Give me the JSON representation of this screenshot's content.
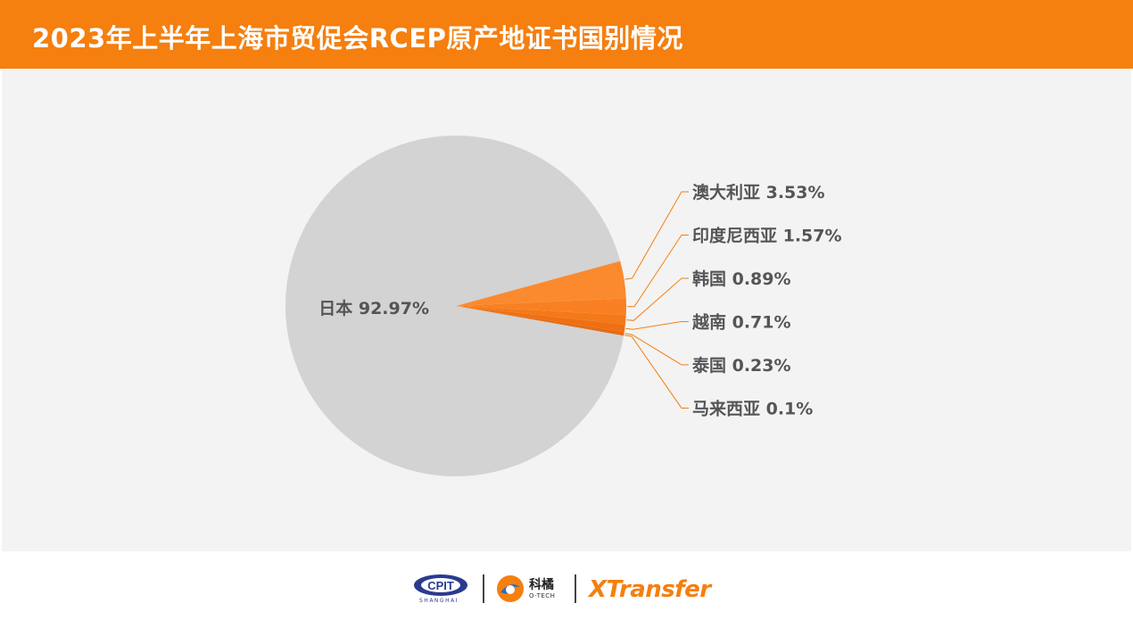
{
  "header": {
    "title": "2023年上半年上海市贸促会RCEP原产地证书国别情况"
  },
  "chart_data": {
    "type": "pie",
    "title": "2023年上半年上海市贸促会RCEP原产地证书国别情况",
    "slices": [
      {
        "label": "日本",
        "value": 92.97,
        "display": "日本 92.97%",
        "color": "#d3d3d3"
      },
      {
        "label": "澳大利亚",
        "value": 3.53,
        "display": "澳大利亚 3.53%",
        "color": "#fb8a2e"
      },
      {
        "label": "印度尼西亚",
        "value": 1.57,
        "display": "印度尼西亚 1.57%",
        "color": "#f98022"
      },
      {
        "label": "韩国",
        "value": 0.89,
        "display": "韩国 0.89%",
        "color": "#f47918"
      },
      {
        "label": "越南",
        "value": 0.71,
        "display": "越南 0.71%",
        "color": "#ee7012"
      },
      {
        "label": "泰国",
        "value": 0.23,
        "display": "泰国 0.23%",
        "color": "#e5690d"
      },
      {
        "label": "马来西亚",
        "value": 0.1,
        "display": "马来西亚 0.1%",
        "color": "#dc6108"
      }
    ],
    "legend": "none",
    "label_style": "leader-lines-right"
  },
  "colors": {
    "accent": "#f57f0f",
    "background": "#f3f3f3",
    "leader_line": "#f57f0f",
    "label_text": "#555555"
  },
  "footer": {
    "cpit_logo_text": "CPIT",
    "cpit_sub_text": "SHANGHAI",
    "otech_cn": "科橘",
    "otech_en": "O-TECH",
    "xtransfer_text": "XTransfer"
  }
}
